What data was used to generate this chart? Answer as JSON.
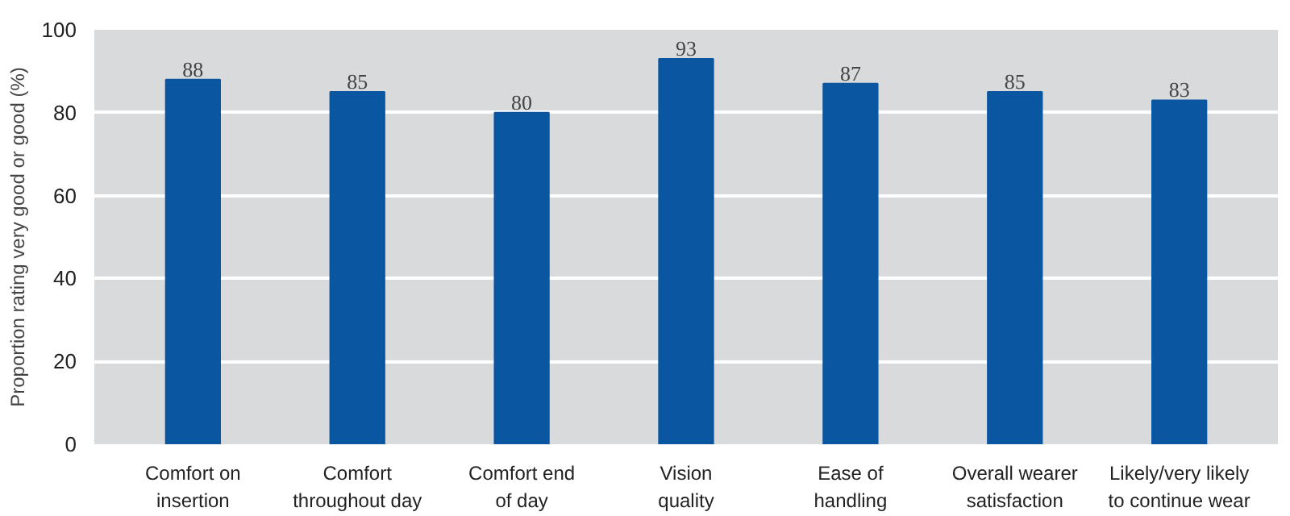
{
  "chart_data": {
    "type": "bar",
    "ylabel": "Proportion rating very good or good (%)",
    "categories": [
      "Comfort on\ninsertion",
      "Comfort\nthroughout day",
      "Comfort end\nof day",
      "Vision\nquality",
      "Ease of\nhandling",
      "Overall wearer\nsatisfaction",
      "Likely/very likely\nto continue wear"
    ],
    "values": [
      88,
      85,
      80,
      93,
      87,
      85,
      83
    ],
    "color": "#0a56a0",
    "ylim": [
      0,
      100
    ],
    "yticks": [
      0,
      20,
      40,
      60,
      80,
      100
    ],
    "grid": "y",
    "data_labels": true
  }
}
